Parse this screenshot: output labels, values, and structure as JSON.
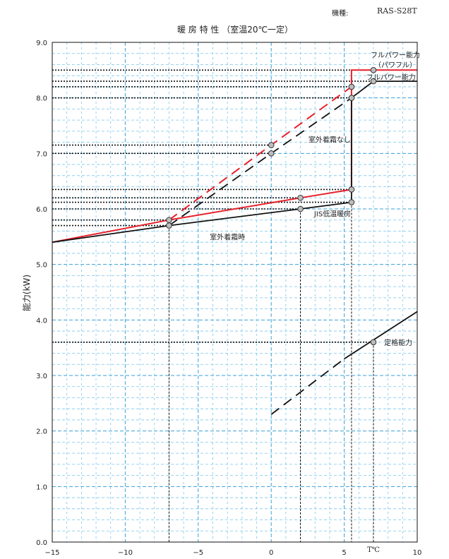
{
  "header": {
    "model_label": "機種:",
    "model_value": "RAS-S28T"
  },
  "chart_data": {
    "type": "line",
    "title": "暖 房 特 性 （室温20℃一定）",
    "xlabel": "",
    "x_unit_label": "T℃",
    "ylabel": "能力(kW)",
    "xlim": [
      -15,
      10
    ],
    "ylim": [
      0,
      9
    ],
    "x_ticks": [
      -15,
      -10,
      -5,
      0,
      5,
      10
    ],
    "x_tick_labels": [
      "−15",
      "−10",
      "−5",
      "0",
      "5",
      "10"
    ],
    "y_ticks": [
      0,
      1,
      2,
      3,
      4,
      5,
      6,
      7,
      8,
      9
    ],
    "y_tick_labels": [
      "0.0",
      "1.0",
      "2.0",
      "3.0",
      "4.0",
      "5.0",
      "6.0",
      "7.0",
      "8.0",
      "9.0"
    ],
    "grid": true,
    "colors": {
      "red": "#e8202a",
      "black": "#111111",
      "grid_major": "#3aa0d8",
      "grid_minor": "#78c6ea"
    },
    "series": [
      {
        "color": "red",
        "style": "solid",
        "x": [
          -15,
          -7,
          2,
          5.5,
          5.5,
          7,
          10
        ],
        "y": [
          5.4,
          5.8,
          6.2,
          6.35,
          8.5,
          8.5,
          8.5
        ]
      },
      {
        "color": "red",
        "style": "dashed",
        "x": [
          -7,
          0,
          5.5
        ],
        "y": [
          5.8,
          7.15,
          8.2
        ]
      },
      {
        "color": "black",
        "style": "solid",
        "x": [
          -15,
          -7,
          2,
          5.5,
          5.5,
          7,
          10
        ],
        "y": [
          5.4,
          5.7,
          6.0,
          6.12,
          8.0,
          8.3,
          8.3
        ]
      },
      {
        "color": "black",
        "style": "dashed",
        "x": [
          -7,
          0,
          5.5
        ],
        "y": [
          5.7,
          7.0,
          8.0
        ]
      },
      {
        "color": "black",
        "style": "dashed",
        "x": [
          0,
          5
        ],
        "y": [
          2.3,
          3.3
        ]
      },
      {
        "color": "black",
        "style": "solid",
        "x": [
          5,
          10
        ],
        "y": [
          3.3,
          4.15
        ]
      }
    ],
    "points": [
      {
        "x": -7,
        "y": 5.8
      },
      {
        "x": -7,
        "y": 5.7
      },
      {
        "x": 0,
        "y": 7.15
      },
      {
        "x": 0,
        "y": 7.0
      },
      {
        "x": 2,
        "y": 6.2
      },
      {
        "x": 2,
        "y": 6.0
      },
      {
        "x": 5.5,
        "y": 6.35
      },
      {
        "x": 5.5,
        "y": 6.12
      },
      {
        "x": 5.5,
        "y": 8.2
      },
      {
        "x": 5.5,
        "y": 8.0
      },
      {
        "x": 7,
        "y": 8.5
      },
      {
        "x": 7,
        "y": 8.3
      },
      {
        "x": 7,
        "y": 3.6
      }
    ],
    "reference_lines": {
      "horizontal": [
        {
          "y": 8.5,
          "x_to": 7
        },
        {
          "y": 8.3,
          "x_to": 7
        },
        {
          "y": 8.2,
          "x_to": 5.5
        },
        {
          "y": 8.0,
          "x_to": 5.5
        },
        {
          "y": 7.15,
          "x_to": 0
        },
        {
          "y": 7.0,
          "x_to": 0
        },
        {
          "y": 6.35,
          "x_to": 5.5
        },
        {
          "y": 6.2,
          "x_to": 2
        },
        {
          "y": 6.12,
          "x_to": 5.5
        },
        {
          "y": 6.0,
          "x_to": 2
        },
        {
          "y": 5.8,
          "x_to": -7
        },
        {
          "y": 5.7,
          "x_to": -7
        },
        {
          "y": 3.6,
          "x_to": 7
        }
      ],
      "vertical": [
        {
          "x": -7,
          "y_from": 5.7
        },
        {
          "x": 2,
          "y_from": 6.0
        },
        {
          "x": 5.5,
          "y_from": 6.12
        },
        {
          "x": 7,
          "y_from": 3.6
        }
      ]
    },
    "annotations": [
      {
        "text": "フルパワー能力",
        "x": 8.5,
        "y": 8.78
      },
      {
        "text": "（パワフル）",
        "x": 8.5,
        "y": 8.6
      },
      {
        "text": "フルパワー能力",
        "x": 8.2,
        "y": 8.38
      },
      {
        "text": "室外着霜なし",
        "x": 4.0,
        "y": 7.25
      },
      {
        "text": "JIS低温暖房",
        "x": 4.2,
        "y": 5.92
      },
      {
        "text": "室外着霜時",
        "x": -3.0,
        "y": 5.5
      },
      {
        "text": "定格能力",
        "x": 8.7,
        "y": 3.6
      }
    ]
  }
}
